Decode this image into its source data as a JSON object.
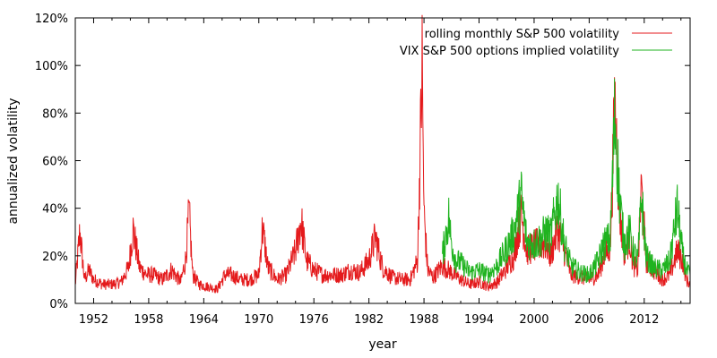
{
  "chart_data": {
    "type": "line",
    "title": "",
    "xlabel": "year",
    "ylabel": "annualized volatility",
    "xlim": [
      1950,
      2017
    ],
    "ylim": [
      0,
      120
    ],
    "y_unit_suffix": "%",
    "x_ticks": [
      1952,
      1958,
      1964,
      1970,
      1976,
      1982,
      1988,
      1994,
      2000,
      2006,
      2012
    ],
    "y_ticks": [
      0,
      20,
      40,
      60,
      80,
      100,
      120
    ],
    "y_tick_labels": [
      "0%",
      "20%",
      "40%",
      "60%",
      "80%",
      "100%",
      "120%"
    ],
    "legend_position": "top-right",
    "grid": false,
    "series": [
      {
        "name": "rolling monthly S&P 500 volatility",
        "color": "#e41a1c",
        "x": [
          1950.0,
          1950.5,
          1951.0,
          1951.5,
          1952.0,
          1953.0,
          1954.0,
          1955.0,
          1955.8,
          1956.3,
          1957.0,
          1957.8,
          1958.5,
          1959.5,
          1960.5,
          1961.5,
          1962.0,
          1962.4,
          1962.8,
          1963.5,
          1964.5,
          1965.5,
          1966.3,
          1967.0,
          1968.0,
          1969.0,
          1970.0,
          1970.4,
          1971.0,
          1972.0,
          1973.0,
          1974.0,
          1974.6,
          1975.2,
          1976.0,
          1977.0,
          1978.0,
          1979.0,
          1980.0,
          1981.0,
          1982.0,
          1982.7,
          1983.5,
          1984.5,
          1985.5,
          1986.5,
          1987.3,
          1987.8,
          1988.0,
          1988.4,
          1989.0,
          1990.0,
          1991.0,
          1992.0,
          1993.0,
          1994.0,
          1995.0,
          1996.0,
          1997.0,
          1997.8,
          1998.6,
          1999.2,
          2000.0,
          2000.7,
          2001.3,
          2001.8,
          2002.6,
          2003.3,
          2004.0,
          2005.0,
          2006.0,
          2007.0,
          2007.6,
          2008.3,
          2008.8,
          2009.3,
          2009.8,
          2010.4,
          2010.8,
          2011.3,
          2011.7,
          2012.2,
          2013.0,
          2014.0,
          2014.8,
          2015.6,
          2016.2,
          2016.6,
          2017.0
        ],
        "y": [
          8,
          30,
          10,
          14,
          10,
          8,
          8,
          9,
          15,
          31,
          15,
          12,
          12,
          10,
          14,
          9,
          18,
          38,
          12,
          8,
          7,
          6,
          12,
          12,
          10,
          10,
          12,
          32,
          15,
          10,
          12,
          22,
          35,
          18,
          14,
          12,
          12,
          12,
          14,
          13,
          18,
          28,
          15,
          11,
          10,
          10,
          18,
          100,
          38,
          14,
          11,
          16,
          13,
          10,
          8,
          9,
          7,
          9,
          15,
          20,
          38,
          22,
          24,
          25,
          25,
          20,
          32,
          22,
          12,
          11,
          10,
          12,
          20,
          24,
          85,
          40,
          22,
          28,
          16,
          14,
          49,
          18,
          14,
          10,
          12,
          22,
          18,
          10,
          8
        ]
      },
      {
        "name": "VIX S&P 500 options implied volatility",
        "color": "#1fb31f",
        "x": [
          1990.0,
          1990.3,
          1990.7,
          1991.0,
          1991.5,
          1992.0,
          1993.0,
          1994.0,
          1995.0,
          1996.0,
          1997.0,
          1997.8,
          1998.6,
          1999.2,
          2000.0,
          2000.7,
          2001.3,
          2001.8,
          2002.6,
          2003.3,
          2004.0,
          2005.0,
          2006.0,
          2007.0,
          2007.6,
          2008.3,
          2008.8,
          2009.3,
          2009.8,
          2010.4,
          2010.8,
          2011.3,
          2011.7,
          2012.2,
          2013.0,
          2014.0,
          2014.8,
          2015.6,
          2016.2,
          2016.6,
          2017.0
        ],
        "y": [
          20,
          27,
          36,
          25,
          18,
          17,
          13,
          14,
          12,
          16,
          23,
          30,
          45,
          26,
          25,
          27,
          30,
          28,
          45,
          25,
          16,
          13,
          12,
          18,
          25,
          27,
          80,
          45,
          25,
          30,
          22,
          18,
          45,
          20,
          15,
          14,
          18,
          40,
          20,
          14,
          12
        ]
      }
    ]
  }
}
